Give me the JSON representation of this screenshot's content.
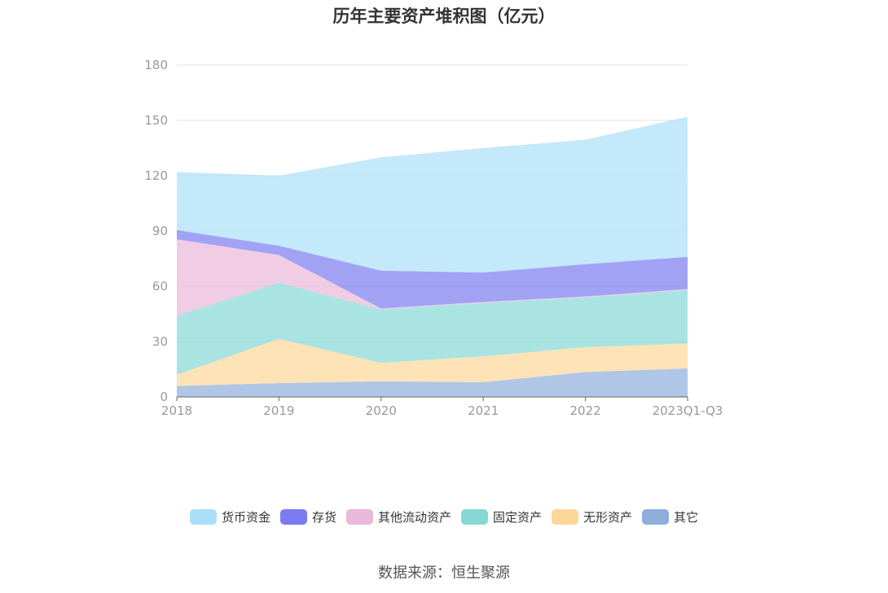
{
  "chart_data": {
    "type": "area",
    "stacked": true,
    "title": "历年主要资产堆积图（亿元）",
    "x": [
      "2018",
      "2019",
      "2020",
      "2021",
      "2022",
      "2023Q1-Q3"
    ],
    "ylim": [
      0,
      180
    ],
    "yticks": [
      0,
      30,
      60,
      90,
      120,
      150,
      180
    ],
    "grid": true,
    "legend_position": "bottom",
    "series": [
      {
        "name": "其它",
        "color": "#8eaedc",
        "values": [
          6,
          7.5,
          8.5,
          8,
          13.5,
          15.5
        ]
      },
      {
        "name": "无形资产",
        "color": "#fdd798",
        "values": [
          6,
          24,
          10,
          14,
          13.5,
          13.5
        ]
      },
      {
        "name": "固定资产",
        "color": "#85d8d6",
        "values": [
          32,
          30.5,
          29,
          29,
          27,
          29
        ]
      },
      {
        "name": "其他流动资产",
        "color": "#e9b8da",
        "values": [
          41.5,
          15,
          0.5,
          0.5,
          0.5,
          0.5
        ]
      },
      {
        "name": "存货",
        "color": "#7b7bf1",
        "values": [
          5,
          5,
          20.5,
          16,
          17.5,
          17.5
        ]
      },
      {
        "name": "货币资金",
        "color": "#abdff8",
        "values": [
          31.5,
          38,
          61.5,
          67.5,
          67.5,
          76
        ]
      }
    ]
  },
  "legend_order": [
    "货币资金",
    "存货",
    "其他流动资产",
    "固定资产",
    "无形资产",
    "其它"
  ],
  "source": "数据来源：恒生聚源"
}
